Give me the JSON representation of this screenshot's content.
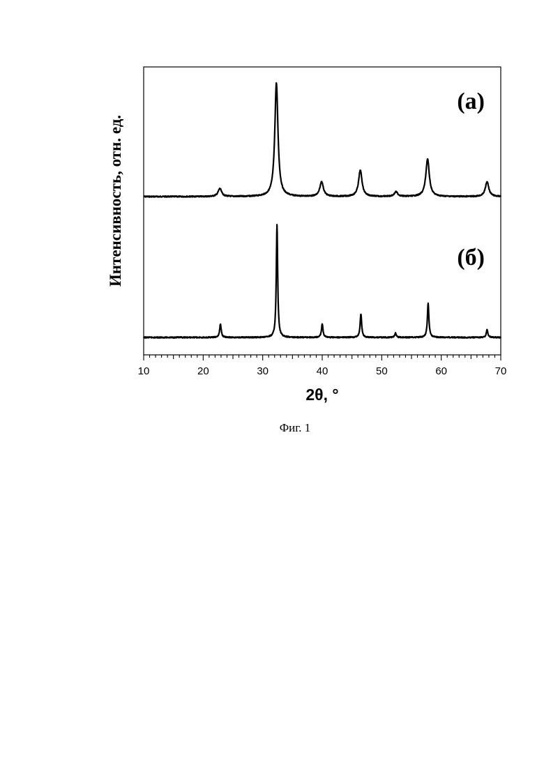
{
  "chart_data": {
    "type": "line",
    "xlabel": "2θ, °",
    "ylabel": "Интенсивность, отн. ед.",
    "xlim": [
      10,
      70
    ],
    "xticks": [
      10,
      20,
      30,
      40,
      50,
      60,
      70
    ],
    "y_ticks_shown": false,
    "grid": false,
    "caption": "Фиг. 1",
    "series": [
      {
        "name": "(а)",
        "peaks": [
          {
            "x": 22.8,
            "height": 0.07
          },
          {
            "x": 32.3,
            "height": 1.0
          },
          {
            "x": 39.9,
            "height": 0.13
          },
          {
            "x": 46.4,
            "height": 0.23
          },
          {
            "x": 52.4,
            "height": 0.04
          },
          {
            "x": 57.7,
            "height": 0.33
          },
          {
            "x": 67.7,
            "height": 0.13
          }
        ]
      },
      {
        "name": "(б)",
        "peaks": [
          {
            "x": 22.9,
            "height": 0.12
          },
          {
            "x": 32.4,
            "height": 1.0
          },
          {
            "x": 40.0,
            "height": 0.12
          },
          {
            "x": 46.5,
            "height": 0.21
          },
          {
            "x": 52.3,
            "height": 0.04
          },
          {
            "x": 57.8,
            "height": 0.3
          },
          {
            "x": 67.7,
            "height": 0.07
          }
        ]
      }
    ]
  }
}
